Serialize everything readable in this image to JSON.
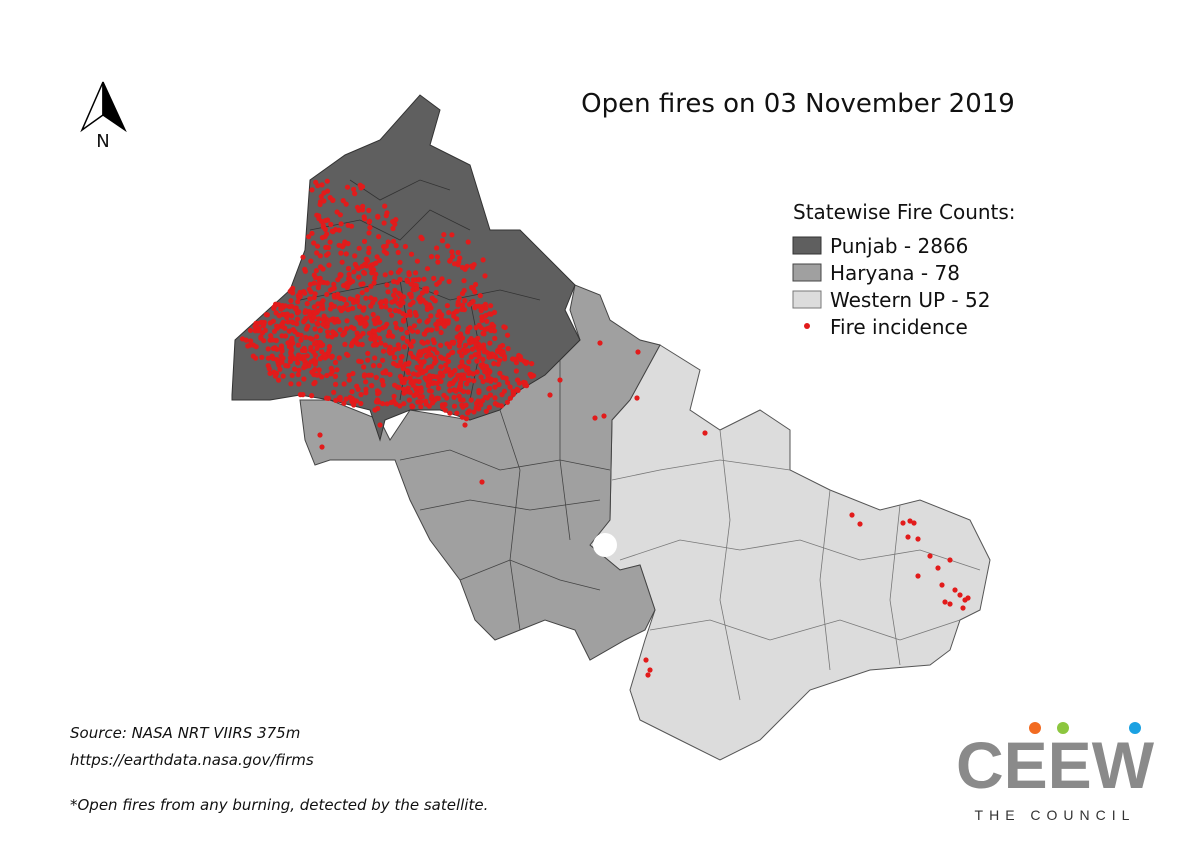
{
  "title": "Open fires on 03 November 2019",
  "north": "N",
  "legend": {
    "title": "Statewise Fire Counts:",
    "items": [
      "Punjab - 2866",
      "Haryana - 78",
      "Western UP - 52",
      "Fire incidence"
    ]
  },
  "source": [
    "Source: NASA NRT VIIRS 375m",
    "https://earthdata.nasa.gov/firms"
  ],
  "note": "*Open fires from any burning, detected by the satellite.",
  "logo": {
    "name": "CEEW",
    "tagline": "THE COUNCIL"
  }
}
